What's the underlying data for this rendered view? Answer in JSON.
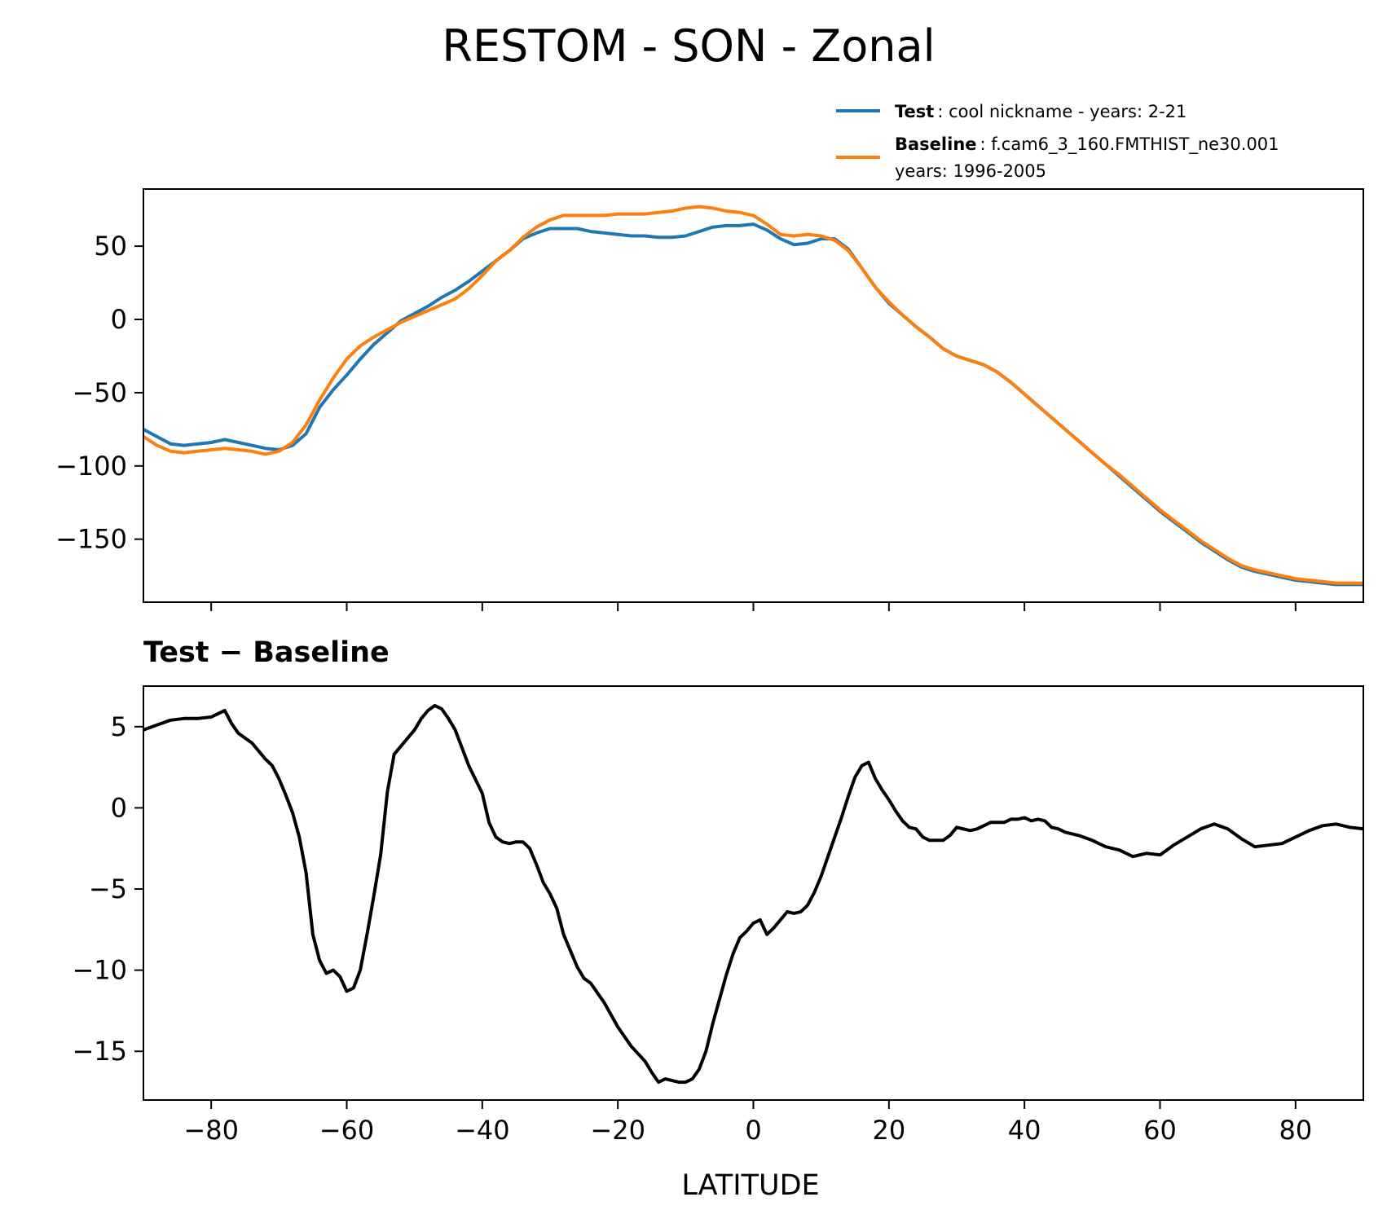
{
  "chart_data": [
    {
      "type": "line",
      "title": "RESTOM - SON - Zonal",
      "xlabel": "",
      "ylabel": "",
      "xlim": [
        -90,
        90
      ],
      "ylim": [
        -193,
        89
      ],
      "xticks": [
        -80,
        -60,
        -40,
        -20,
        0,
        20,
        40,
        60,
        80
      ],
      "yticks": [
        50,
        0,
        -50,
        -100,
        -150
      ],
      "ytick_labels": [
        "50",
        "0",
        "−50",
        "−100",
        "−150"
      ],
      "grid": false,
      "legend_position": "above-right",
      "legend": [
        {
          "bold": "Test",
          "text": ": cool nickname - years: 2-21",
          "text2": "",
          "color": "#1f77b4"
        },
        {
          "bold": "Baseline",
          "text": ": f.cam6_3_160.FMTHIST_ne30.001",
          "text2": "years: 1996-2005",
          "color": "#ff7f0e"
        }
      ],
      "series": [
        {
          "name": "Test",
          "color": "#1f77b4",
          "x": [
            -90,
            -88,
            -86,
            -84,
            -82,
            -80,
            -78,
            -76,
            -74,
            -72,
            -70,
            -68,
            -66,
            -64,
            -62,
            -60,
            -58,
            -56,
            -54,
            -52,
            -50,
            -48,
            -46,
            -44,
            -42,
            -40,
            -38,
            -36,
            -34,
            -32,
            -30,
            -28,
            -26,
            -24,
            -22,
            -20,
            -18,
            -16,
            -14,
            -12,
            -10,
            -8,
            -6,
            -4,
            -2,
            0,
            2,
            4,
            6,
            8,
            10,
            12,
            14,
            16,
            18,
            20,
            22,
            24,
            26,
            28,
            30,
            32,
            34,
            36,
            38,
            40,
            42,
            44,
            46,
            48,
            50,
            52,
            54,
            56,
            58,
            60,
            62,
            64,
            66,
            68,
            70,
            72,
            74,
            76,
            78,
            80,
            82,
            84,
            86,
            88,
            90
          ],
          "y": [
            -75,
            -80,
            -85,
            -86,
            -85,
            -84,
            -82,
            -84,
            -86,
            -88,
            -89,
            -86,
            -78,
            -60,
            -48,
            -38,
            -27,
            -17,
            -9,
            -1,
            4,
            9,
            15,
            20,
            26,
            33,
            40,
            47,
            55,
            59,
            62,
            62,
            62,
            60,
            59,
            58,
            57,
            57,
            56,
            56,
            57,
            60,
            63,
            64,
            64,
            65,
            61,
            55,
            51,
            52,
            55,
            55,
            48,
            35,
            22,
            11,
            3,
            -5,
            -12,
            -20,
            -25,
            -28,
            -31,
            -36,
            -43,
            -51,
            -59,
            -67,
            -75,
            -83,
            -91,
            -99,
            -107,
            -115,
            -123,
            -131,
            -138,
            -145,
            -152,
            -158,
            -164,
            -169,
            -172,
            -174,
            -176,
            -178,
            -179,
            -180,
            -181,
            -181,
            -181
          ]
        },
        {
          "name": "Baseline",
          "color": "#ff7f0e",
          "x": [
            -90,
            -88,
            -86,
            -84,
            -82,
            -80,
            -78,
            -76,
            -74,
            -72,
            -70,
            -68,
            -66,
            -64,
            -62,
            -60,
            -58,
            -56,
            -54,
            -52,
            -50,
            -48,
            -46,
            -44,
            -42,
            -40,
            -38,
            -36,
            -34,
            -32,
            -30,
            -28,
            -26,
            -24,
            -22,
            -20,
            -18,
            -16,
            -14,
            -12,
            -10,
            -8,
            -6,
            -4,
            -2,
            0,
            2,
            4,
            6,
            8,
            10,
            12,
            14,
            16,
            18,
            20,
            22,
            24,
            26,
            28,
            30,
            32,
            34,
            36,
            38,
            40,
            42,
            44,
            46,
            48,
            50,
            52,
            54,
            56,
            58,
            60,
            62,
            64,
            66,
            68,
            70,
            72,
            74,
            76,
            78,
            80,
            82,
            84,
            86,
            88,
            90
          ],
          "y": [
            -80,
            -86,
            -90,
            -91,
            -90,
            -89,
            -88,
            -89,
            -90,
            -92,
            -90,
            -84,
            -72,
            -55,
            -40,
            -27,
            -18,
            -12,
            -7,
            -2,
            2,
            6,
            10,
            14,
            21,
            30,
            40,
            47,
            56,
            63,
            68,
            71,
            71,
            71,
            71,
            72,
            72,
            72,
            73,
            74,
            76,
            77,
            76,
            74,
            73,
            71,
            65,
            58,
            57,
            58,
            57,
            54,
            47,
            35,
            22,
            12,
            3,
            -5,
            -12,
            -20,
            -25,
            -28,
            -31,
            -36,
            -43,
            -51,
            -59,
            -67,
            -75,
            -83,
            -91,
            -99,
            -106,
            -114,
            -122,
            -130,
            -137,
            -144,
            -151,
            -157,
            -163,
            -168,
            -171,
            -173,
            -175,
            -177,
            -178,
            -179,
            -180,
            -180,
            -180
          ]
        }
      ]
    },
    {
      "type": "line",
      "title": "Test − Baseline",
      "xlabel": "LATITUDE",
      "ylabel": "",
      "xlim": [
        -90,
        90
      ],
      "ylim": [
        -18,
        7.5
      ],
      "xticks": [
        -80,
        -60,
        -40,
        -20,
        0,
        20,
        40,
        60,
        80
      ],
      "xtick_labels": [
        "−80",
        "−60",
        "−40",
        "−20",
        "0",
        "20",
        "40",
        "60",
        "80"
      ],
      "yticks": [
        5,
        0,
        -5,
        -10,
        -15
      ],
      "ytick_labels": [
        "5",
        "0",
        "−5",
        "−10",
        "−15"
      ],
      "grid": false,
      "series": [
        {
          "name": "",
          "color": "#000000",
          "x": [
            -90,
            -88,
            -86,
            -84,
            -82,
            -80,
            -79,
            -78,
            -77,
            -76,
            -74,
            -72,
            -71,
            -70,
            -69,
            -68,
            -67,
            -66,
            -65,
            -64,
            -63,
            -62,
            -61,
            -60,
            -59,
            -58,
            -57,
            -56,
            -55,
            -54,
            -53,
            -52,
            -51,
            -50,
            -49,
            -48,
            -47,
            -46,
            -45,
            -44,
            -42,
            -40,
            -39,
            -38,
            -37,
            -36,
            -35,
            -34,
            -33,
            -32,
            -31,
            -30,
            -29,
            -28,
            -26,
            -25,
            -24,
            -22,
            -20,
            -18,
            -16,
            -15,
            -14,
            -13,
            -12,
            -11,
            -10,
            -9,
            -8,
            -7,
            -6,
            -5,
            -4,
            -3,
            -2,
            -1,
            0,
            1,
            2,
            3,
            4,
            5,
            6,
            7,
            8,
            9,
            10,
            11,
            12,
            13,
            14,
            15,
            16,
            17,
            18,
            19,
            20,
            21,
            22,
            23,
            24,
            25,
            26,
            27,
            28,
            29,
            30,
            31,
            32,
            33,
            34,
            35,
            36,
            37,
            38,
            39,
            40,
            41,
            42,
            43,
            44,
            45,
            46,
            48,
            50,
            52,
            54,
            56,
            58,
            60,
            62,
            64,
            66,
            68,
            70,
            72,
            74,
            76,
            78,
            80,
            82,
            84,
            86,
            88,
            90
          ],
          "y": [
            4.8,
            5.1,
            5.4,
            5.5,
            5.5,
            5.6,
            5.8,
            6.0,
            5.2,
            4.6,
            4.0,
            3.0,
            2.6,
            1.8,
            0.8,
            -0.3,
            -1.8,
            -4.0,
            -7.8,
            -9.4,
            -10.2,
            -10.0,
            -10.4,
            -11.3,
            -11.1,
            -10.0,
            -7.8,
            -5.4,
            -2.9,
            1.0,
            3.3,
            3.8,
            4.3,
            4.8,
            5.5,
            6.0,
            6.3,
            6.1,
            5.5,
            4.8,
            2.6,
            0.9,
            -0.9,
            -1.8,
            -2.1,
            -2.2,
            -2.1,
            -2.1,
            -2.5,
            -3.5,
            -4.6,
            -5.3,
            -6.2,
            -7.8,
            -9.8,
            -10.5,
            -10.8,
            -12.0,
            -13.5,
            -14.7,
            -15.6,
            -16.3,
            -16.9,
            -16.7,
            -16.8,
            -16.9,
            -16.9,
            -16.7,
            -16.1,
            -15.0,
            -13.3,
            -11.8,
            -10.3,
            -9.0,
            -8.0,
            -7.6,
            -7.1,
            -6.9,
            -7.8,
            -7.4,
            -6.9,
            -6.4,
            -6.5,
            -6.4,
            -6.0,
            -5.2,
            -4.2,
            -3.0,
            -1.8,
            -0.6,
            0.7,
            1.9,
            2.6,
            2.8,
            1.8,
            1.1,
            0.5,
            -0.2,
            -0.8,
            -1.2,
            -1.3,
            -1.8,
            -2.0,
            -2.0,
            -2.0,
            -1.7,
            -1.2,
            -1.3,
            -1.4,
            -1.3,
            -1.1,
            -0.9,
            -0.9,
            -0.9,
            -0.7,
            -0.7,
            -0.6,
            -0.8,
            -0.7,
            -0.8,
            -1.2,
            -1.3,
            -1.5,
            -1.7,
            -2.0,
            -2.4,
            -2.6,
            -3.0,
            -2.8,
            -2.9,
            -2.3,
            -1.8,
            -1.3,
            -1.0,
            -1.3,
            -1.9,
            -2.4,
            -2.3,
            -2.2,
            -1.8,
            -1.4,
            -1.1,
            -1.0,
            -1.2,
            -1.3
          ]
        }
      ]
    }
  ]
}
